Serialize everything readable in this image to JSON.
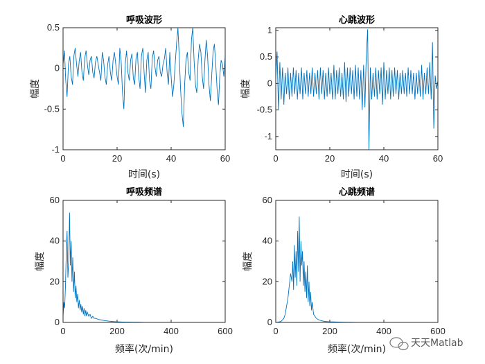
{
  "colors": {
    "line": "#0072BD",
    "axes": "#262626"
  },
  "watermark": {
    "text": "天天Matlab",
    "icon": "wechat-bubble-icon"
  },
  "chart_data": [
    {
      "id": "resp-wave",
      "type": "line",
      "title": "呼吸波形",
      "xlabel": "时间(s)",
      "ylabel": "幅度",
      "xlim": [
        0,
        60
      ],
      "ylim": [
        -1,
        0.5
      ],
      "xticks": [
        0,
        20,
        40,
        60
      ],
      "xtick_labels": [
        "0",
        "20",
        "40",
        "60"
      ],
      "yticks": [
        -1,
        -0.5,
        0,
        0.5
      ],
      "ytick_labels": [
        "-1",
        "-0.5",
        "0",
        "0.5"
      ],
      "series": [
        {
          "x": [
            0,
            0.5,
            1,
            1.5,
            2,
            2.5,
            3,
            3.5,
            4,
            4.5,
            5,
            5.5,
            6,
            6.5,
            7,
            7.5,
            8,
            8.5,
            9,
            9.5,
            10,
            10.5,
            11,
            11.5,
            12,
            12.5,
            13,
            13.5,
            14,
            14.5,
            15,
            15.5,
            16,
            16.5,
            17,
            17.5,
            18,
            18.5,
            19,
            19.5,
            20,
            20.5,
            21,
            21.5,
            22,
            22.5,
            23,
            23.5,
            24,
            24.5,
            25,
            25.5,
            26,
            26.5,
            27,
            27.5,
            28,
            28.5,
            29,
            29.5,
            30,
            30.5,
            31,
            31.5,
            32,
            32.5,
            33,
            33.5,
            34,
            34.5,
            35,
            35.5,
            36,
            36.5,
            37,
            37.5,
            38,
            38.5,
            39,
            39.5,
            40,
            40.5,
            41,
            41.5,
            42,
            42.5,
            43,
            43.5,
            44,
            44.5,
            45,
            45.5,
            46,
            46.5,
            47,
            47.5,
            48,
            48.5,
            49,
            49.5,
            50,
            50.5,
            51,
            51.5,
            52,
            52.5,
            53,
            53.5,
            54,
            54.5,
            55,
            55.5,
            56,
            56.5,
            57,
            57.5,
            58,
            58.5,
            59,
            59.5,
            60
          ],
          "y": [
            0.05,
            0.22,
            -0.15,
            -0.35,
            0.05,
            0.15,
            -0.1,
            -0.2,
            0.15,
            0.25,
            0.05,
            -0.1,
            0.1,
            0.2,
            -0.05,
            -0.15,
            0.12,
            0.22,
            0.05,
            -0.08,
            0.1,
            0.15,
            -0.05,
            -0.12,
            0.08,
            0.15,
            0.05,
            -0.05,
            -0.15,
            0.2,
            0.1,
            -0.1,
            -0.2,
            0.05,
            0.15,
            -0.05,
            -0.15,
            0.1,
            0.2,
            0.05,
            -0.1,
            -0.2,
            0.25,
            0.1,
            -0.3,
            -0.5,
            0.05,
            0.22,
            -0.05,
            -0.15,
            0.1,
            0.18,
            -0.12,
            -0.2,
            0.12,
            0.2,
            -0.1,
            -0.25,
            0.15,
            0.25,
            -0.05,
            -0.3,
            0.1,
            0.2,
            -0.15,
            -0.25,
            0.12,
            0.22,
            0.02,
            -0.1,
            0.1,
            0.15,
            -0.05,
            -0.1,
            0.05,
            0.12,
            0.25,
            -0.05,
            -0.2,
            0.2,
            -0.1,
            -0.35,
            -0.2,
            0.05,
            0.3,
            0.5,
            0.15,
            -0.25,
            -0.55,
            -0.72,
            -0.2,
            0.1,
            0.2,
            -0.05,
            -0.15,
            0.35,
            0.5,
            0.1,
            -0.2,
            -0.3,
            0.1,
            0.3,
            0.2,
            -0.1,
            -0.25,
            0.1,
            0.35,
            0.15,
            -0.2,
            -0.4,
            -0.1,
            0.2,
            0.3,
            0.05,
            -0.25,
            -0.45,
            -0.1,
            0.1,
            0.05,
            -0.1,
            0.15
          ]
        }
      ]
    },
    {
      "id": "heart-wave",
      "type": "line",
      "title": "心跳波形",
      "xlabel": "",
      "ylabel": "幅度",
      "xlim": [
        0,
        60
      ],
      "ylim": [
        -1.25,
        1.05
      ],
      "xticks": [
        0,
        20,
        40,
        60
      ],
      "xtick_labels": [
        "0",
        "20",
        "40",
        "60"
      ],
      "yticks": [
        -1,
        -0.5,
        0,
        0.5,
        1
      ],
      "ytick_labels": [
        "-1",
        "-0.5",
        "0",
        "0.5",
        "1"
      ],
      "series": [
        {
          "x": [
            0,
            0.5,
            1,
            1.5,
            2,
            2.5,
            3,
            3.5,
            4,
            4.5,
            5,
            5.5,
            6,
            6.5,
            7,
            7.5,
            8,
            8.5,
            9,
            9.5,
            10,
            10.5,
            11,
            11.5,
            12,
            12.5,
            13,
            13.5,
            14,
            14.5,
            15,
            15.5,
            16,
            16.5,
            17,
            17.5,
            18,
            18.5,
            19,
            19.5,
            20,
            20.5,
            21,
            21.5,
            22,
            22.5,
            23,
            23.5,
            24,
            24.5,
            25,
            25.5,
            26,
            26.5,
            27,
            27.5,
            28,
            28.5,
            29,
            29.5,
            30,
            30.5,
            31,
            31.5,
            32,
            32.5,
            33,
            33.5,
            34,
            34.5,
            35,
            35.5,
            36,
            36.5,
            37,
            37.5,
            38,
            38.5,
            39,
            39.5,
            40,
            40.5,
            41,
            41.5,
            42,
            42.5,
            43,
            43.5,
            44,
            44.5,
            45,
            45.5,
            46,
            46.5,
            47,
            47.5,
            48,
            48.5,
            49,
            49.5,
            50,
            50.5,
            51,
            51.5,
            52,
            52.5,
            53,
            53.5,
            54,
            54.5,
            55,
            55.5,
            56,
            56.5,
            57,
            57.5,
            58,
            58.5,
            59,
            59.5,
            60
          ],
          "y": [
            0.1,
            0.6,
            -0.5,
            0.4,
            -0.3,
            0.3,
            -0.4,
            0.2,
            -0.2,
            0.3,
            -0.3,
            0.2,
            -0.25,
            0.3,
            -0.2,
            0.25,
            -0.3,
            0.2,
            -0.2,
            0.3,
            -0.3,
            0.2,
            -0.2,
            0.25,
            -0.25,
            0.2,
            -0.2,
            0.3,
            -0.25,
            0.2,
            -0.2,
            0.25,
            -0.3,
            0.3,
            -0.2,
            0.25,
            -0.3,
            0.2,
            -0.25,
            0.3,
            -0.2,
            0.2,
            -0.3,
            0.35,
            -0.3,
            0.25,
            -0.2,
            0.3,
            -0.25,
            0.2,
            -0.3,
            0.4,
            -0.35,
            0.3,
            -0.25,
            0.3,
            -0.2,
            0.25,
            -0.3,
            0.35,
            -0.25,
            0.3,
            -0.3,
            0.25,
            -0.5,
            0.35,
            -0.45,
            0.5,
            1.02,
            -1.25,
            0.3,
            -0.3,
            0.2,
            -0.25,
            0.3,
            -0.3,
            0.25,
            -0.2,
            0.3,
            -0.4,
            0.4,
            -0.3,
            0.25,
            -0.2,
            0.3,
            -0.3,
            0.25,
            -0.25,
            0.3,
            -0.2,
            0.25,
            -0.3,
            0.2,
            -0.2,
            0.25,
            -0.2,
            0.2,
            -0.25,
            0.3,
            -0.2,
            0.25,
            -0.2,
            0.2,
            -0.3,
            0.2,
            -0.2,
            0.25,
            -0.25,
            0.35,
            -0.3,
            0.2,
            -0.2,
            0.3,
            -0.2,
            0.4,
            -0.3,
            0.78,
            -0.85,
            0.15,
            -0.1,
            0.05
          ]
        }
      ]
    },
    {
      "id": "resp-spec",
      "type": "line",
      "title": "呼吸频谱",
      "xlabel": "频率(次/min)",
      "ylabel": "幅度",
      "xlim": [
        0,
        600
      ],
      "ylim": [
        0,
        60
      ],
      "xticks": [
        0,
        200,
        400,
        600
      ],
      "xtick_labels": [
        "0",
        "200",
        "400",
        "600"
      ],
      "yticks": [
        0,
        20,
        40,
        60
      ],
      "ytick_labels": [
        "0",
        "20",
        "40",
        "60"
      ],
      "series": [
        {
          "x": [
            0,
            3,
            6,
            9,
            12,
            15,
            18,
            21,
            24,
            27,
            30,
            33,
            36,
            39,
            42,
            45,
            48,
            51,
            54,
            57,
            60,
            63,
            66,
            69,
            72,
            75,
            78,
            81,
            84,
            87,
            90,
            95,
            100,
            105,
            110,
            115,
            120,
            130,
            140,
            150,
            160,
            170,
            180,
            190,
            200,
            220,
            240,
            260,
            280,
            300,
            350,
            400,
            450,
            500,
            550,
            600
          ],
          "y": [
            3,
            10,
            7,
            18,
            35,
            45,
            22,
            30,
            54,
            28,
            40,
            20,
            32,
            15,
            25,
            12,
            18,
            10,
            14,
            7,
            11,
            6,
            9,
            5,
            8,
            4,
            7,
            3,
            6,
            3,
            5,
            3,
            4,
            2,
            3,
            2,
            2,
            1.5,
            1.2,
            1,
            0.8,
            0.6,
            0.5,
            0.4,
            0.3,
            0.2,
            0.15,
            0.1,
            0.1,
            0.05,
            0.05,
            0.05,
            0,
            0,
            0,
            0
          ]
        }
      ]
    },
    {
      "id": "heart-spec",
      "type": "line",
      "title": "心跳频谱",
      "xlabel": "频率(次/min)",
      "ylabel": "幅度",
      "xlim": [
        0,
        600
      ],
      "ylim": [
        0,
        60
      ],
      "xticks": [
        0,
        200,
        400,
        600
      ],
      "xtick_labels": [
        "0",
        "200",
        "400",
        "600"
      ],
      "yticks": [
        0,
        20,
        40,
        60
      ],
      "ytick_labels": [
        "0",
        "20",
        "40",
        "60"
      ],
      "series": [
        {
          "x": [
            0,
            10,
            20,
            30,
            35,
            40,
            45,
            50,
            55,
            60,
            63,
            66,
            69,
            72,
            75,
            78,
            81,
            84,
            87,
            90,
            93,
            96,
            99,
            102,
            105,
            108,
            111,
            114,
            117,
            120,
            123,
            126,
            129,
            132,
            135,
            140,
            145,
            150,
            160,
            170,
            180,
            200,
            250,
            300,
            400,
            500,
            600
          ],
          "y": [
            0,
            0.2,
            0.5,
            2,
            4,
            8,
            12,
            18,
            24,
            20,
            30,
            16,
            38,
            22,
            35,
            18,
            45,
            25,
            52,
            20,
            40,
            28,
            35,
            18,
            30,
            15,
            25,
            12,
            28,
            10,
            20,
            8,
            15,
            6,
            10,
            4,
            3,
            2,
            1.2,
            0.8,
            0.5,
            0.3,
            0.1,
            0.05,
            0,
            0,
            0
          ]
        }
      ]
    }
  ]
}
